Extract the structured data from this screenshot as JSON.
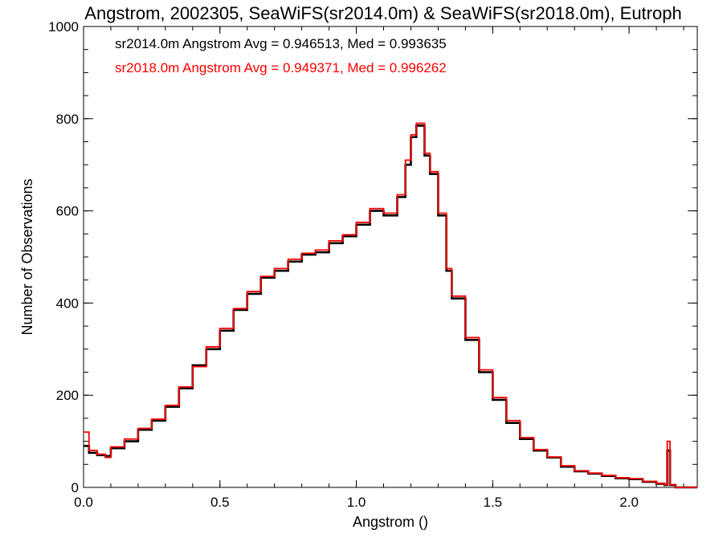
{
  "chart_data": {
    "type": "line",
    "title": "Angstrom, 2002305, SeaWiFS(sr2014.0m) & SeaWiFS(sr2018.0m), Eutroph",
    "xlabel": "Angstrom ()",
    "ylabel": "Number of Observations",
    "xlim": [
      0.0,
      2.25
    ],
    "ylim": [
      0,
      1000
    ],
    "xticks": [
      "0.0",
      "0.5",
      "1.0",
      "1.5",
      "2.0"
    ],
    "yticks": [
      "0",
      "200",
      "400",
      "600",
      "800",
      "1000"
    ],
    "grid": false,
    "legend_position": "top-left",
    "annotations": [
      "sr2014.0m Angstrom Avg = 0.946513, Med = 0.993635",
      "sr2018.0m Angstrom Avg = 0.949371, Med = 0.996262"
    ],
    "series": [
      {
        "color": "#000000",
        "x": [
          0.0,
          0.02,
          0.05,
          0.08,
          0.1,
          0.15,
          0.2,
          0.25,
          0.3,
          0.35,
          0.4,
          0.45,
          0.5,
          0.55,
          0.6,
          0.65,
          0.7,
          0.75,
          0.8,
          0.85,
          0.9,
          0.95,
          1.0,
          1.05,
          1.1,
          1.15,
          1.18,
          1.2,
          1.22,
          1.25,
          1.27,
          1.3,
          1.33,
          1.35,
          1.4,
          1.45,
          1.5,
          1.55,
          1.6,
          1.65,
          1.7,
          1.75,
          1.8,
          1.85,
          1.9,
          1.95,
          2.0,
          2.05,
          2.1,
          2.13,
          2.14,
          2.15,
          2.17,
          2.2,
          2.25
        ],
        "y": [
          90,
          75,
          70,
          68,
          85,
          100,
          125,
          145,
          175,
          215,
          265,
          300,
          340,
          385,
          420,
          455,
          470,
          490,
          505,
          510,
          530,
          545,
          570,
          600,
          590,
          630,
          700,
          760,
          785,
          720,
          680,
          590,
          470,
          410,
          320,
          250,
          190,
          140,
          105,
          80,
          65,
          45,
          35,
          30,
          25,
          20,
          18,
          12,
          8,
          5,
          80,
          5,
          0,
          0,
          0
        ]
      },
      {
        "color": "#ff0000",
        "x": [
          0.0,
          0.02,
          0.05,
          0.08,
          0.1,
          0.15,
          0.2,
          0.25,
          0.3,
          0.35,
          0.4,
          0.45,
          0.5,
          0.55,
          0.6,
          0.65,
          0.7,
          0.75,
          0.8,
          0.85,
          0.9,
          0.95,
          1.0,
          1.05,
          1.1,
          1.15,
          1.18,
          1.2,
          1.22,
          1.25,
          1.27,
          1.3,
          1.33,
          1.35,
          1.4,
          1.45,
          1.5,
          1.55,
          1.6,
          1.65,
          1.7,
          1.75,
          1.8,
          1.85,
          1.9,
          1.95,
          2.0,
          2.05,
          2.1,
          2.13,
          2.14,
          2.15,
          2.17,
          2.2,
          2.25
        ],
        "y": [
          120,
          80,
          72,
          65,
          88,
          105,
          128,
          148,
          178,
          218,
          262,
          305,
          345,
          388,
          425,
          458,
          475,
          495,
          508,
          515,
          535,
          548,
          575,
          605,
          595,
          635,
          710,
          765,
          790,
          725,
          685,
          595,
          475,
          415,
          325,
          255,
          195,
          145,
          108,
          82,
          66,
          47,
          36,
          31,
          26,
          21,
          19,
          13,
          9,
          6,
          100,
          6,
          0,
          0,
          0
        ]
      }
    ]
  }
}
